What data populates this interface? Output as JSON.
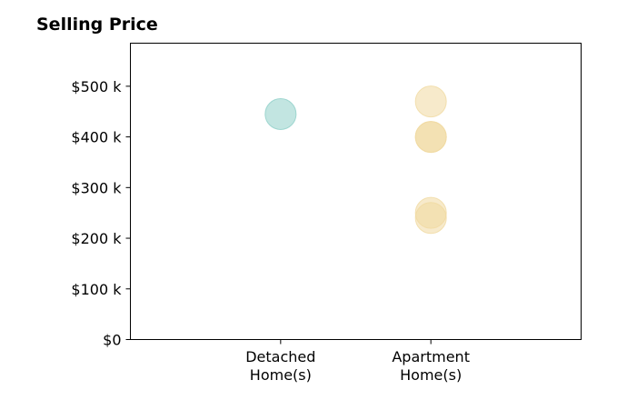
{
  "chart_data": {
    "type": "scatter",
    "title": "Selling Price",
    "xlabel": "",
    "ylabel": "",
    "categories": [
      [
        "Detached",
        "Home(s)"
      ],
      [
        "Apartment",
        "Home(s)"
      ]
    ],
    "y_ticks": [
      {
        "value": 0,
        "label": "$0"
      },
      {
        "value": 100000,
        "label": "$100 k"
      },
      {
        "value": 200000,
        "label": "$200 k"
      },
      {
        "value": 300000,
        "label": "$300 k"
      },
      {
        "value": 400000,
        "label": "$400 k"
      },
      {
        "value": 500000,
        "label": "$500 k"
      }
    ],
    "ylim": [
      0,
      585000
    ],
    "x_range": [
      -1,
      2
    ],
    "grid": false,
    "series": [
      {
        "category_index": 0,
        "color": "#8fd0c8",
        "values": [
          445000
        ]
      },
      {
        "category_index": 1,
        "color": "#f0d9a0",
        "values": [
          470000,
          400000,
          400000,
          250000,
          240000
        ]
      }
    ]
  }
}
